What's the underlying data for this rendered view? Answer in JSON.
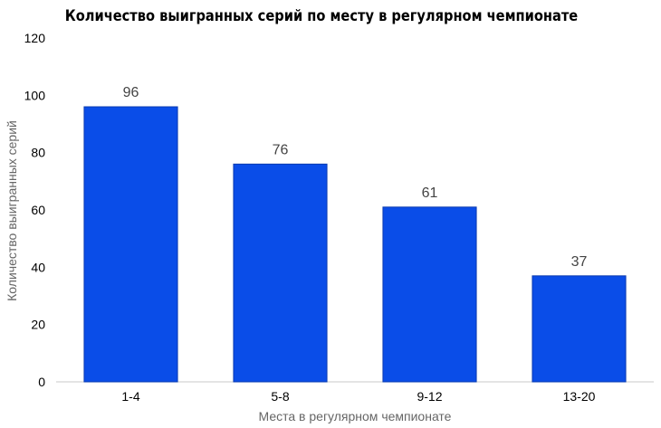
{
  "chart_data": {
    "type": "bar",
    "title": "Количество выигранных серий по месту в регулярном чемпионате",
    "xlabel": "Места в регулярном чемпионате",
    "ylabel": "Количество выигранных серий",
    "categories": [
      "1-4",
      "5-8",
      "9-12",
      "13-20"
    ],
    "values": [
      96,
      76,
      61,
      37
    ],
    "data_labels": [
      "96",
      "76",
      "61",
      "37"
    ],
    "yticks": [
      "0",
      "20",
      "40",
      "60",
      "80",
      "100",
      "120"
    ],
    "ylim": [
      0,
      120
    ],
    "grid": false,
    "legend": "none",
    "bar_color": "#0a4de8",
    "bar_edge_color": "#0a3bb0"
  }
}
